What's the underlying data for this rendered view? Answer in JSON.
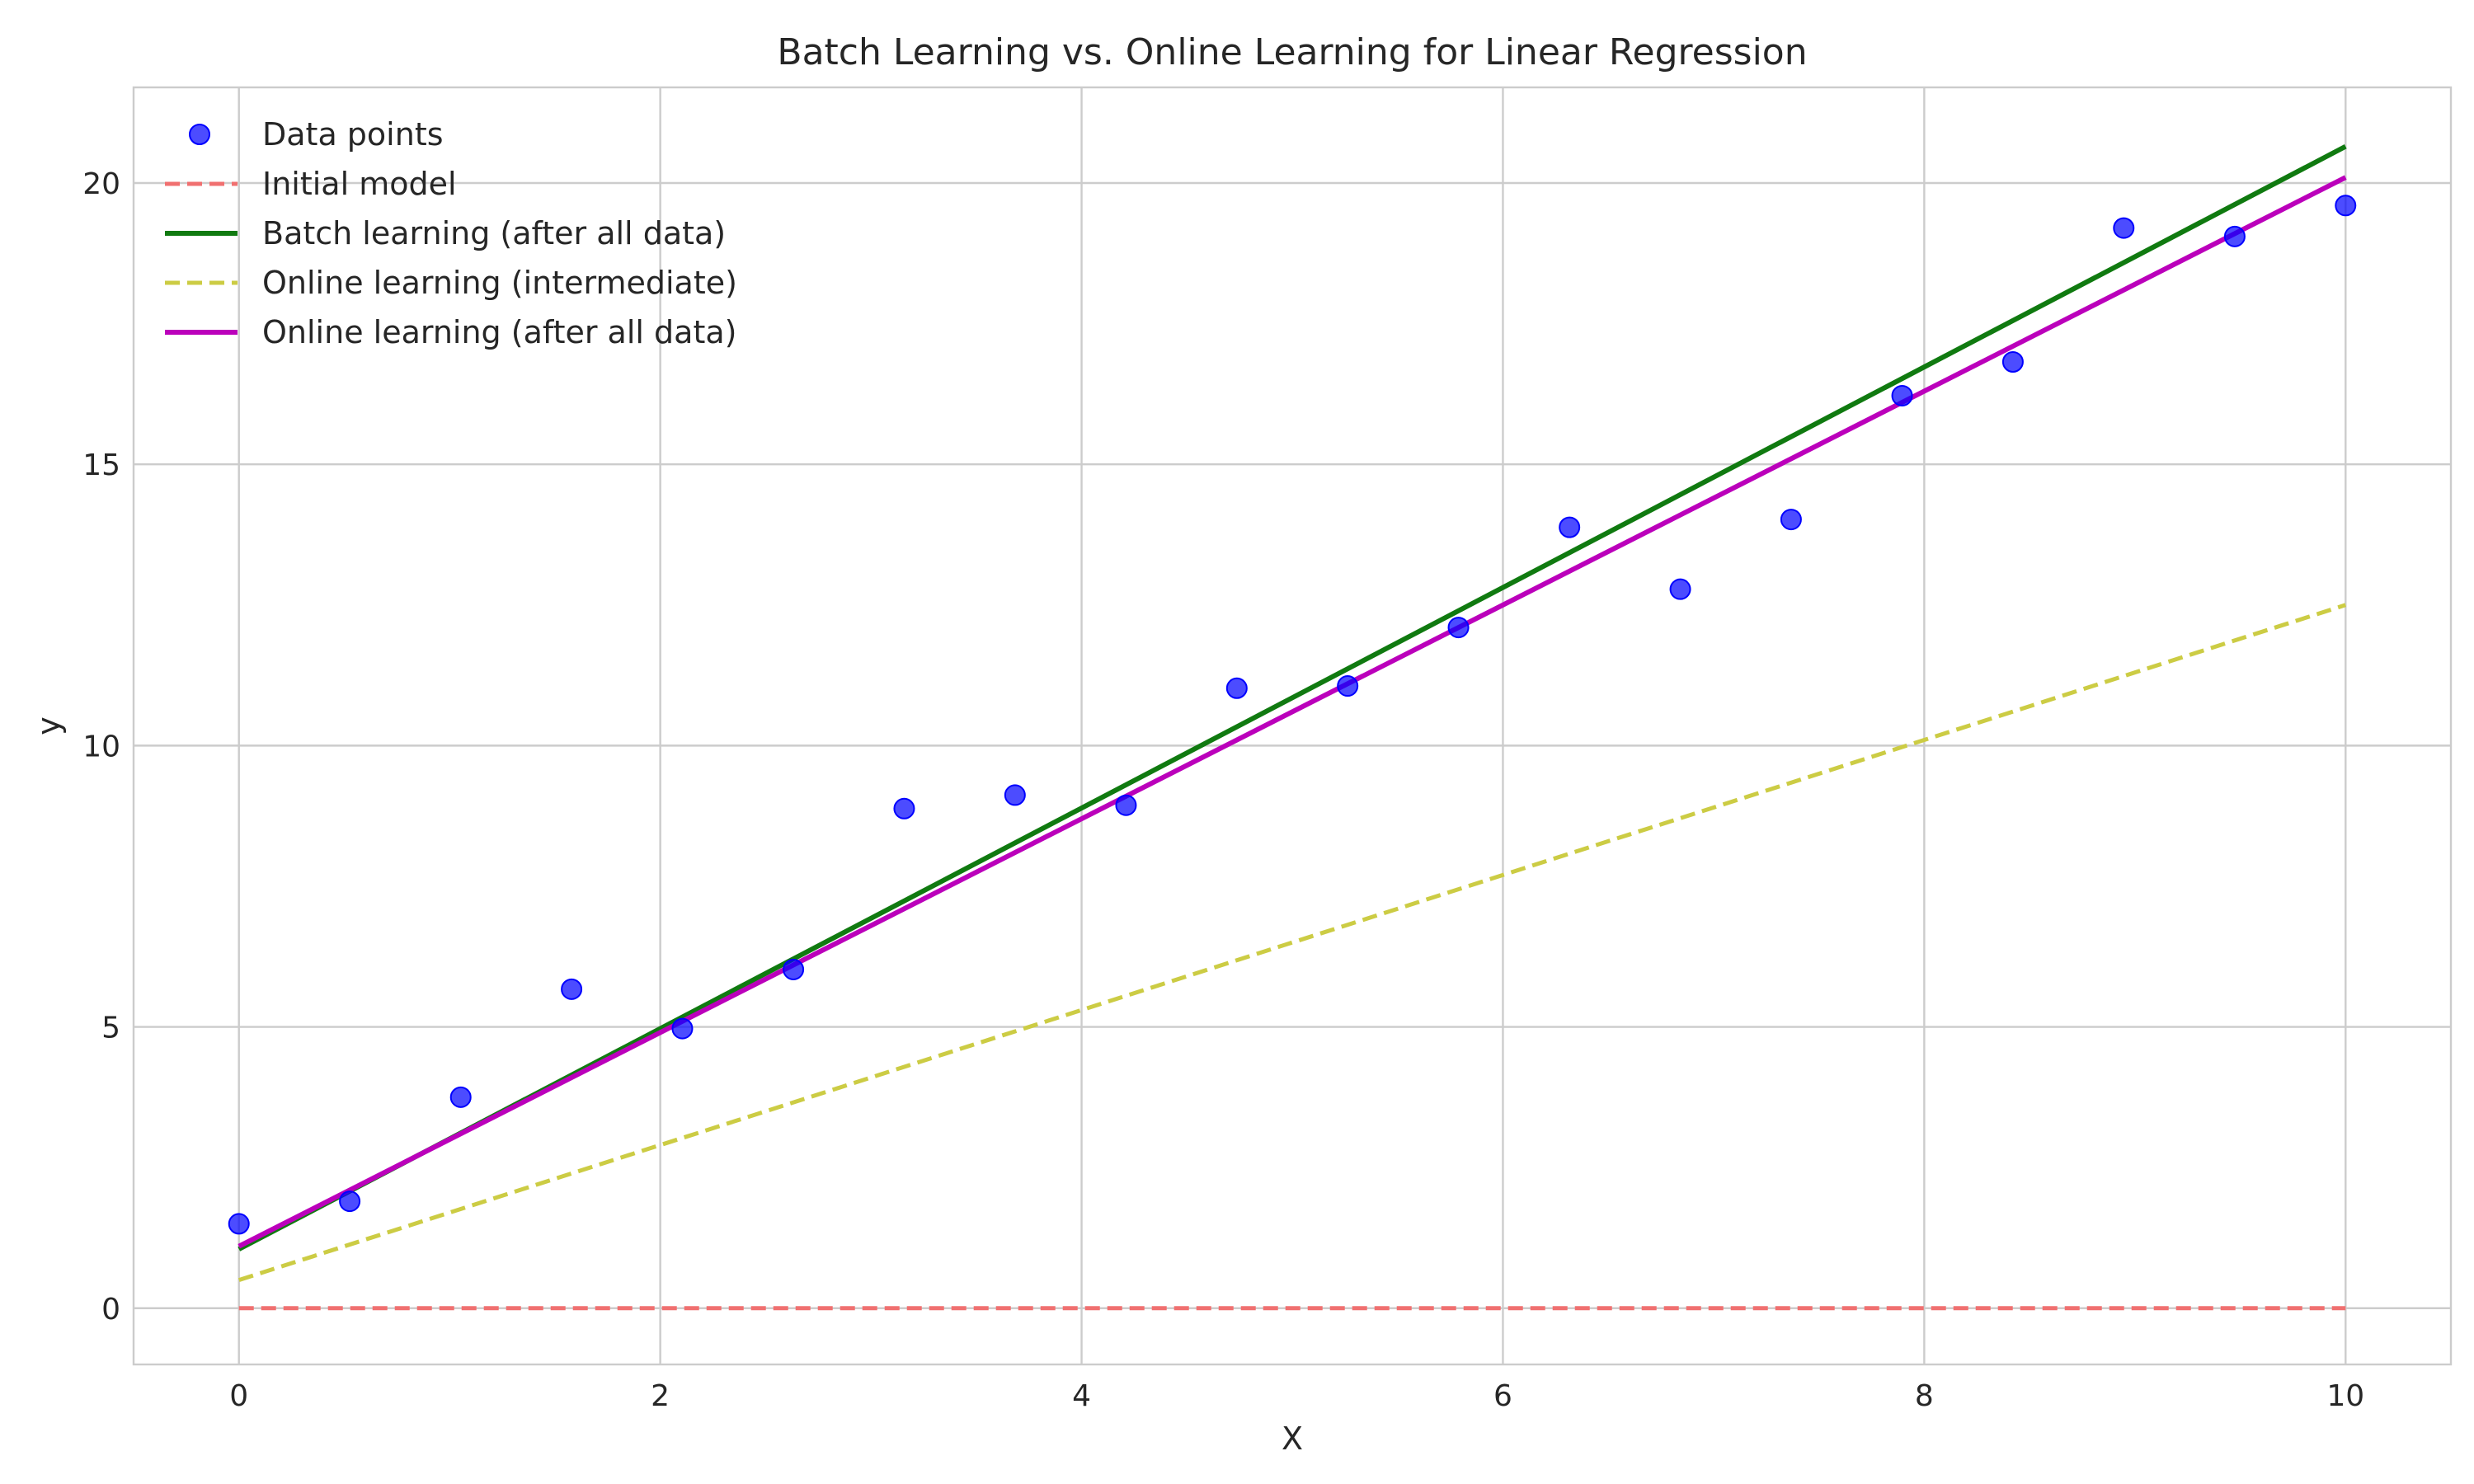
{
  "chart_data": {
    "type": "scatter",
    "title": "Batch Learning vs. Online Learning for Linear Regression",
    "xlabel": "X",
    "ylabel": "y",
    "xlim": [
      -0.5,
      10.5
    ],
    "ylim": [
      -1.0,
      21.7
    ],
    "xticks": [
      0,
      2,
      4,
      6,
      8,
      10
    ],
    "yticks": [
      0,
      5,
      10,
      15,
      20
    ],
    "grid": true,
    "legend_position": "top-left",
    "scatter": {
      "name": "Data points",
      "color": "#0000ff",
      "x": [
        0.0,
        0.526,
        1.053,
        1.579,
        2.105,
        2.632,
        3.158,
        3.684,
        4.211,
        4.737,
        5.263,
        5.789,
        6.316,
        6.842,
        7.368,
        7.895,
        8.421,
        8.947,
        9.474,
        10.0
      ],
      "y": [
        1.5,
        1.9,
        3.75,
        5.67,
        4.97,
        6.02,
        8.88,
        9.12,
        8.94,
        11.02,
        11.06,
        12.1,
        13.88,
        12.78,
        14.02,
        16.22,
        16.82,
        19.2,
        19.05,
        19.6
      ]
    },
    "series": [
      {
        "name": "Initial model",
        "color": "#f07070",
        "style": "dashed",
        "x": [
          0,
          10
        ],
        "y": [
          0.0,
          0.0
        ]
      },
      {
        "name": "Batch learning (after all data)",
        "color": "#107a10",
        "style": "solid",
        "x": [
          0,
          10
        ],
        "y": [
          1.05,
          20.65
        ]
      },
      {
        "name": "Online learning (intermediate)",
        "color": "#cccc44",
        "style": "dashed",
        "x": [
          0,
          10
        ],
        "y": [
          0.5,
          12.5
        ]
      },
      {
        "name": "Online learning (after all data)",
        "color": "#bb00bb",
        "style": "solid",
        "x": [
          0,
          10
        ],
        "y": [
          1.1,
          20.1
        ]
      }
    ]
  }
}
